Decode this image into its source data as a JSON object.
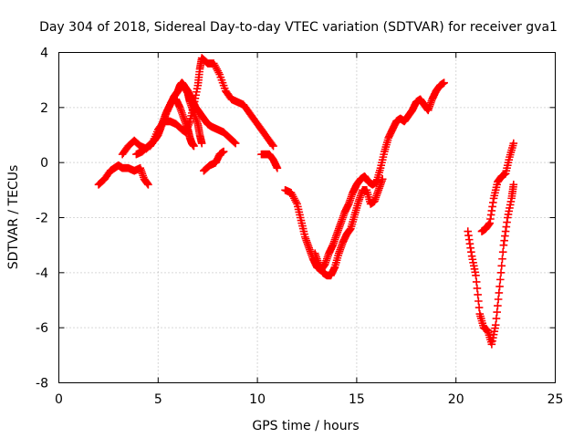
{
  "chart_data": {
    "type": "scatter",
    "title": "Day 304 of 2018, Sidereal Day-to-day VTEC variation (SDTVAR) for receiver gva1",
    "xlabel": "GPS time / hours",
    "ylabel": "SDTVAR / TECUs",
    "xlim": [
      0,
      25
    ],
    "ylim": [
      -8,
      4
    ],
    "xticks": [
      "0",
      "5",
      "10",
      "15",
      "20",
      "25"
    ],
    "yticks": [
      "-8",
      "-6",
      "-4",
      "-2",
      "0",
      "2",
      "4"
    ],
    "grid": true,
    "marker": "+",
    "color": "#ff0000",
    "series": [
      {
        "x": [
          2.0,
          2.3,
          2.6,
          2.8,
          3.0,
          3.2,
          3.5,
          3.8,
          4.1,
          4.3,
          4.5
        ],
        "y": [
          -0.8,
          -0.6,
          -0.3,
          -0.2,
          -0.1,
          -0.2,
          -0.2,
          -0.3,
          -0.2,
          -0.6,
          -0.8
        ]
      },
      {
        "x": [
          3.2,
          3.5,
          3.8,
          4.1,
          4.4,
          4.7,
          5.0,
          5.3,
          5.6,
          5.9,
          6.2,
          6.4,
          6.6,
          6.8,
          7.0,
          7.1,
          7.2,
          7.5,
          7.8,
          8.1,
          8.4,
          8.7,
          9.0,
          9.3,
          9.6,
          9.9,
          10.2,
          10.5,
          10.8
        ],
        "y": [
          0.3,
          0.6,
          0.8,
          0.6,
          0.5,
          0.7,
          1.2,
          1.5,
          1.5,
          1.4,
          1.2,
          1.1,
          1.5,
          2.1,
          2.8,
          3.4,
          3.8,
          3.6,
          3.6,
          3.2,
          2.6,
          2.3,
          2.2,
          2.1,
          1.8,
          1.5,
          1.2,
          0.9,
          0.6
        ]
      },
      {
        "x": [
          3.9,
          4.2,
          4.5,
          4.8,
          5.0,
          5.2,
          5.4,
          5.6,
          5.8,
          6.0,
          6.1,
          6.2,
          6.3,
          6.5,
          6.7,
          6.9,
          7.1,
          7.3,
          7.5,
          7.7,
          8.0,
          8.3,
          8.6,
          8.9
        ],
        "y": [
          0.3,
          0.4,
          0.6,
          0.8,
          1.0,
          1.4,
          1.8,
          2.1,
          2.4,
          2.6,
          2.8,
          2.9,
          2.8,
          2.6,
          2.3,
          2.0,
          1.8,
          1.6,
          1.4,
          1.3,
          1.2,
          1.1,
          0.9,
          0.7
        ]
      },
      {
        "x": [
          4.6,
          4.9,
          5.1,
          5.3,
          5.6,
          5.9,
          6.1,
          6.3,
          6.5,
          6.6,
          6.8,
          7.0,
          7.1,
          7.2
        ],
        "y": [
          0.6,
          0.9,
          1.2,
          1.6,
          2.1,
          2.5,
          2.7,
          2.8,
          2.5,
          2.2,
          1.8,
          1.4,
          1.0,
          0.7
        ]
      },
      {
        "x": [
          5.9,
          6.1,
          6.3,
          6.5,
          6.6,
          6.7,
          6.8
        ],
        "y": [
          2.3,
          2.0,
          1.6,
          1.2,
          0.9,
          0.7,
          0.6
        ]
      },
      {
        "x": [
          7.3,
          7.6,
          7.9,
          8.1,
          8.3
        ],
        "y": [
          -0.3,
          -0.1,
          0.0,
          0.3,
          0.4
        ]
      },
      {
        "x": [
          10.2,
          10.4,
          10.6,
          10.8,
          11.0
        ],
        "y": [
          0.3,
          0.3,
          0.3,
          0.1,
          -0.2
        ]
      },
      {
        "x": [
          11.4,
          11.7,
          12.0,
          12.2,
          12.4,
          12.6,
          12.8,
          13.0,
          13.2,
          13.4,
          13.6,
          13.8,
          14.0,
          14.2,
          14.4,
          14.6,
          14.8,
          15.0,
          15.2,
          15.4,
          15.6,
          15.8,
          16.0,
          16.2,
          16.4,
          16.6,
          16.8,
          17.0,
          17.2,
          17.4,
          17.6,
          17.8,
          18.0,
          18.2,
          18.4,
          18.6,
          18.8,
          19.0,
          19.2,
          19.4
        ],
        "y": [
          -1.0,
          -1.1,
          -1.5,
          -2.1,
          -2.7,
          -3.1,
          -3.5,
          -3.8,
          -3.9,
          -3.7,
          -3.3,
          -3.0,
          -2.6,
          -2.2,
          -1.8,
          -1.5,
          -1.1,
          -0.8,
          -0.6,
          -0.5,
          -0.7,
          -0.8,
          -0.7,
          -0.2,
          0.4,
          0.9,
          1.2,
          1.5,
          1.6,
          1.5,
          1.7,
          1.9,
          2.2,
          2.3,
          2.1,
          1.9,
          2.3,
          2.6,
          2.8,
          2.9
        ]
      },
      {
        "x": [
          12.9,
          13.1,
          13.3,
          13.5,
          13.7,
          13.9,
          14.1,
          14.3,
          14.5,
          14.7,
          14.9,
          15.1,
          15.3,
          15.5,
          15.7,
          15.9,
          16.1,
          16.3
        ],
        "y": [
          -3.3,
          -3.7,
          -4.0,
          -4.1,
          -4.1,
          -3.8,
          -3.3,
          -2.9,
          -2.6,
          -2.4,
          -1.9,
          -1.4,
          -1.0,
          -1.0,
          -1.5,
          -1.4,
          -1.0,
          -0.6
        ]
      },
      {
        "x": [
          20.6,
          20.8,
          21.0,
          21.2,
          21.4,
          21.6,
          21.8,
          22.0,
          22.2,
          22.4,
          22.6,
          22.8,
          22.9
        ],
        "y": [
          -2.5,
          -3.4,
          -4.1,
          -5.5,
          -6.0,
          -6.1,
          -6.6,
          -5.9,
          -4.5,
          -3.0,
          -2.0,
          -1.3,
          -0.8
        ]
      },
      {
        "x": [
          21.3,
          21.5,
          21.7,
          21.9,
          22.1,
          22.3,
          22.5,
          22.7,
          22.9
        ],
        "y": [
          -2.5,
          -2.4,
          -2.2,
          -1.3,
          -0.7,
          -0.5,
          -0.4,
          0.2,
          0.7
        ]
      }
    ]
  }
}
